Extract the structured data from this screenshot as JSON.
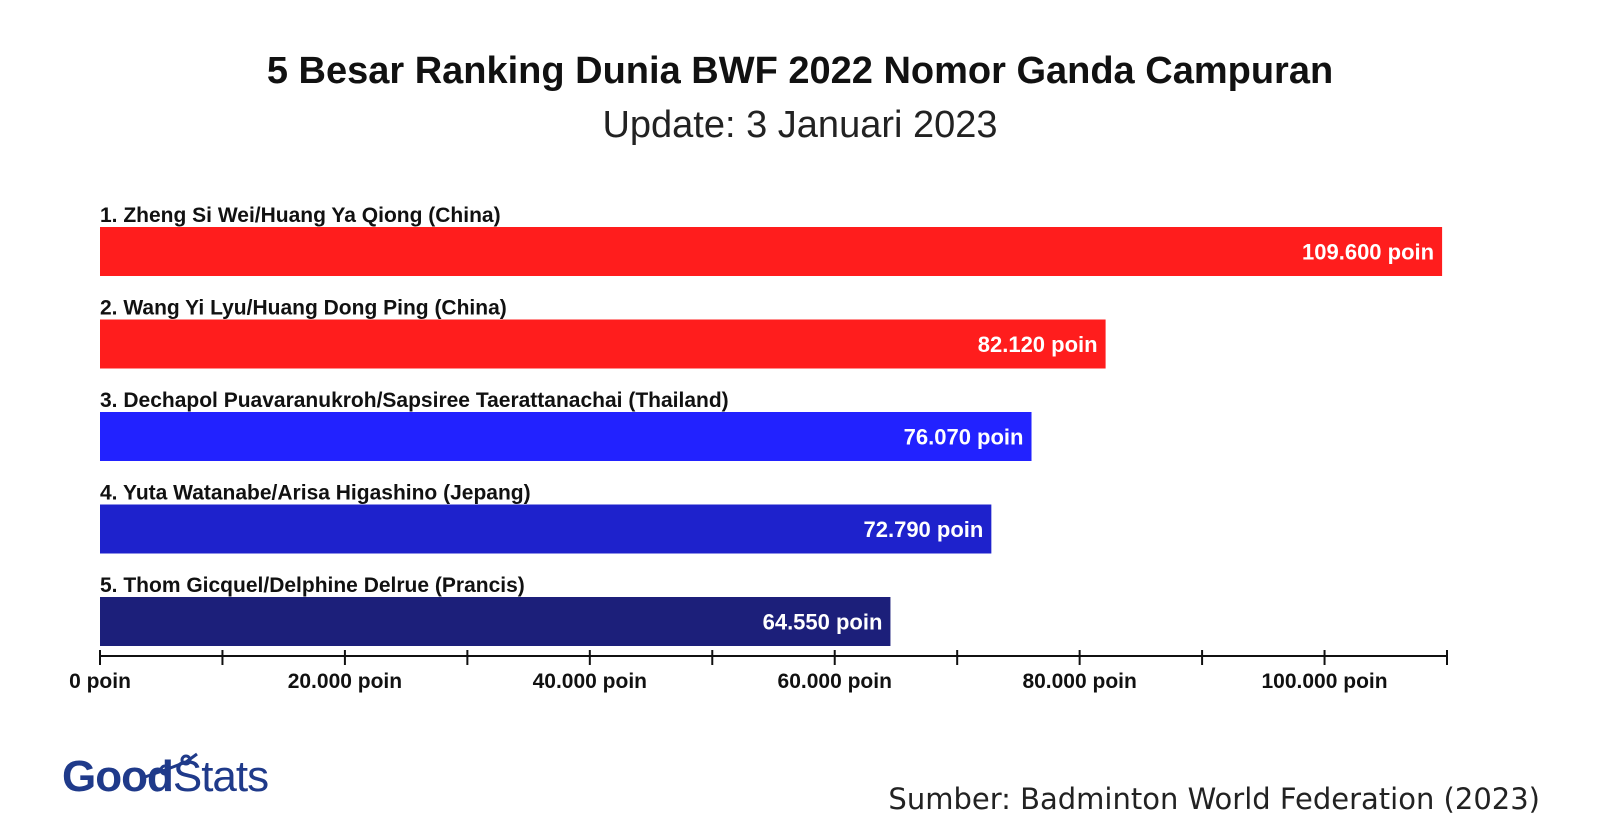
{
  "chart_data": {
    "type": "bar",
    "orientation": "horizontal",
    "title": "5 Besar Ranking Dunia BWF 2022 Nomor Ganda Campuran",
    "subtitle": "Update: 3 Januari 2023",
    "categories": [
      "1. Zheng Si Wei/Huang Ya Qiong (China)",
      "2. Wang Yi Lyu/Huang Dong Ping (China)",
      "3. Dechapol Puavaranukroh/Sapsiree Taerattanachai (Thailand)",
      "4. Yuta Watanabe/Arisa Higashino (Jepang)",
      "5. Thom Gicquel/Delphine Delrue (Prancis)"
    ],
    "values": [
      109600,
      82120,
      76070,
      72790,
      64550
    ],
    "value_labels": [
      "109.600 poin",
      "82.120 poin",
      "76.070 poin",
      "72.790 poin",
      "64.550 poin"
    ],
    "colors": [
      "#ff1d1d",
      "#ff1d1d",
      "#2222ff",
      "#1e22cc",
      "#1c1f7a"
    ],
    "xlim": [
      0,
      110000
    ],
    "xticks": [
      0,
      20000,
      40000,
      60000,
      80000,
      100000
    ],
    "xtick_labels": [
      "0 poin",
      "20.000 poin",
      "40.000 poin",
      "60.000 poin",
      "80.000 poin",
      "100.000 poin"
    ],
    "minor_ticks": [
      10000,
      30000,
      50000,
      70000,
      90000,
      110000
    ],
    "grid": false
  },
  "source": "Sumber: Badminton World Federation (2023)",
  "logo": {
    "part1": "Good",
    "part2": "Stats",
    "color": "#1f3a8a"
  }
}
